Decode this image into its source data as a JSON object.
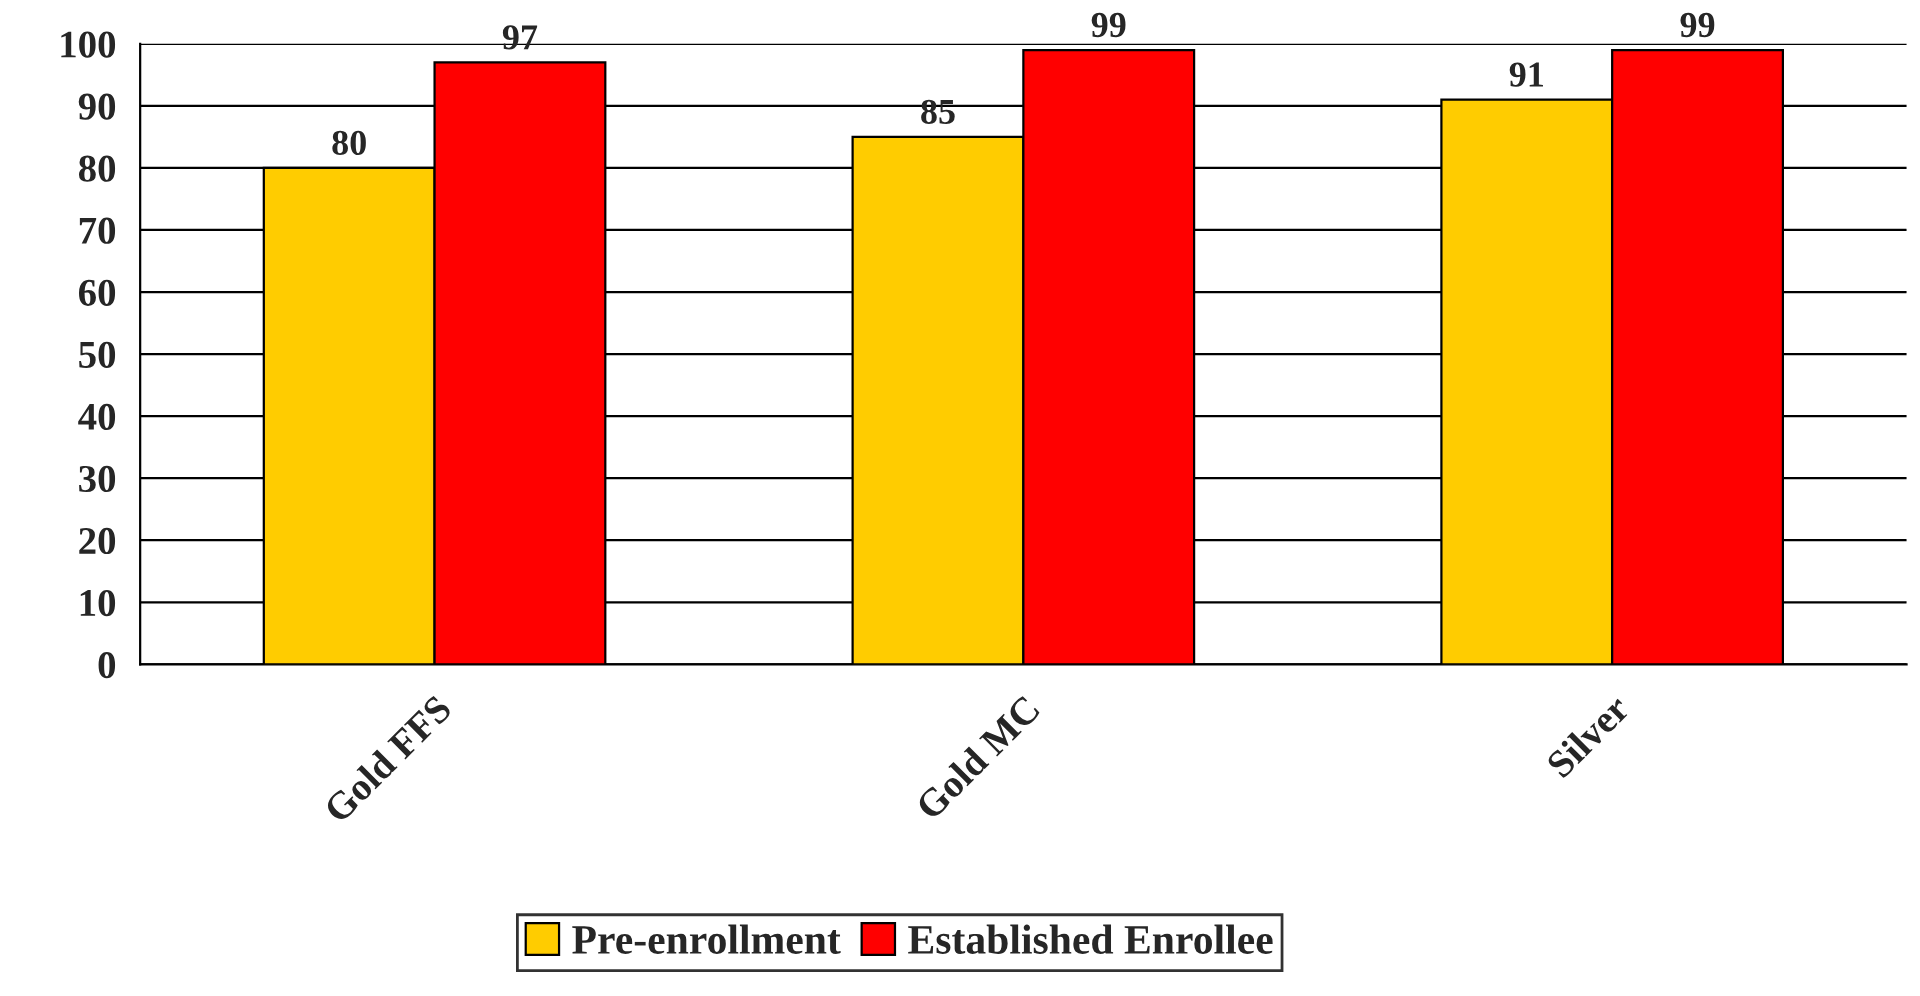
{
  "chart_data": {
    "type": "bar",
    "categories": [
      "Gold FFS",
      "Gold MC",
      "Silver"
    ],
    "series": [
      {
        "name": "Pre-enrollment",
        "color": "#ffcc00",
        "values": [
          80,
          85,
          91
        ]
      },
      {
        "name": "Established Enrollee",
        "color": "#ff0000",
        "values": [
          97,
          99,
          99
        ]
      }
    ],
    "ylim": [
      0,
      100
    ],
    "yticks": [
      0,
      10,
      20,
      30,
      40,
      50,
      60,
      70,
      80,
      90,
      100
    ],
    "grid": "y",
    "legend": "bottom",
    "data_labels": true
  }
}
